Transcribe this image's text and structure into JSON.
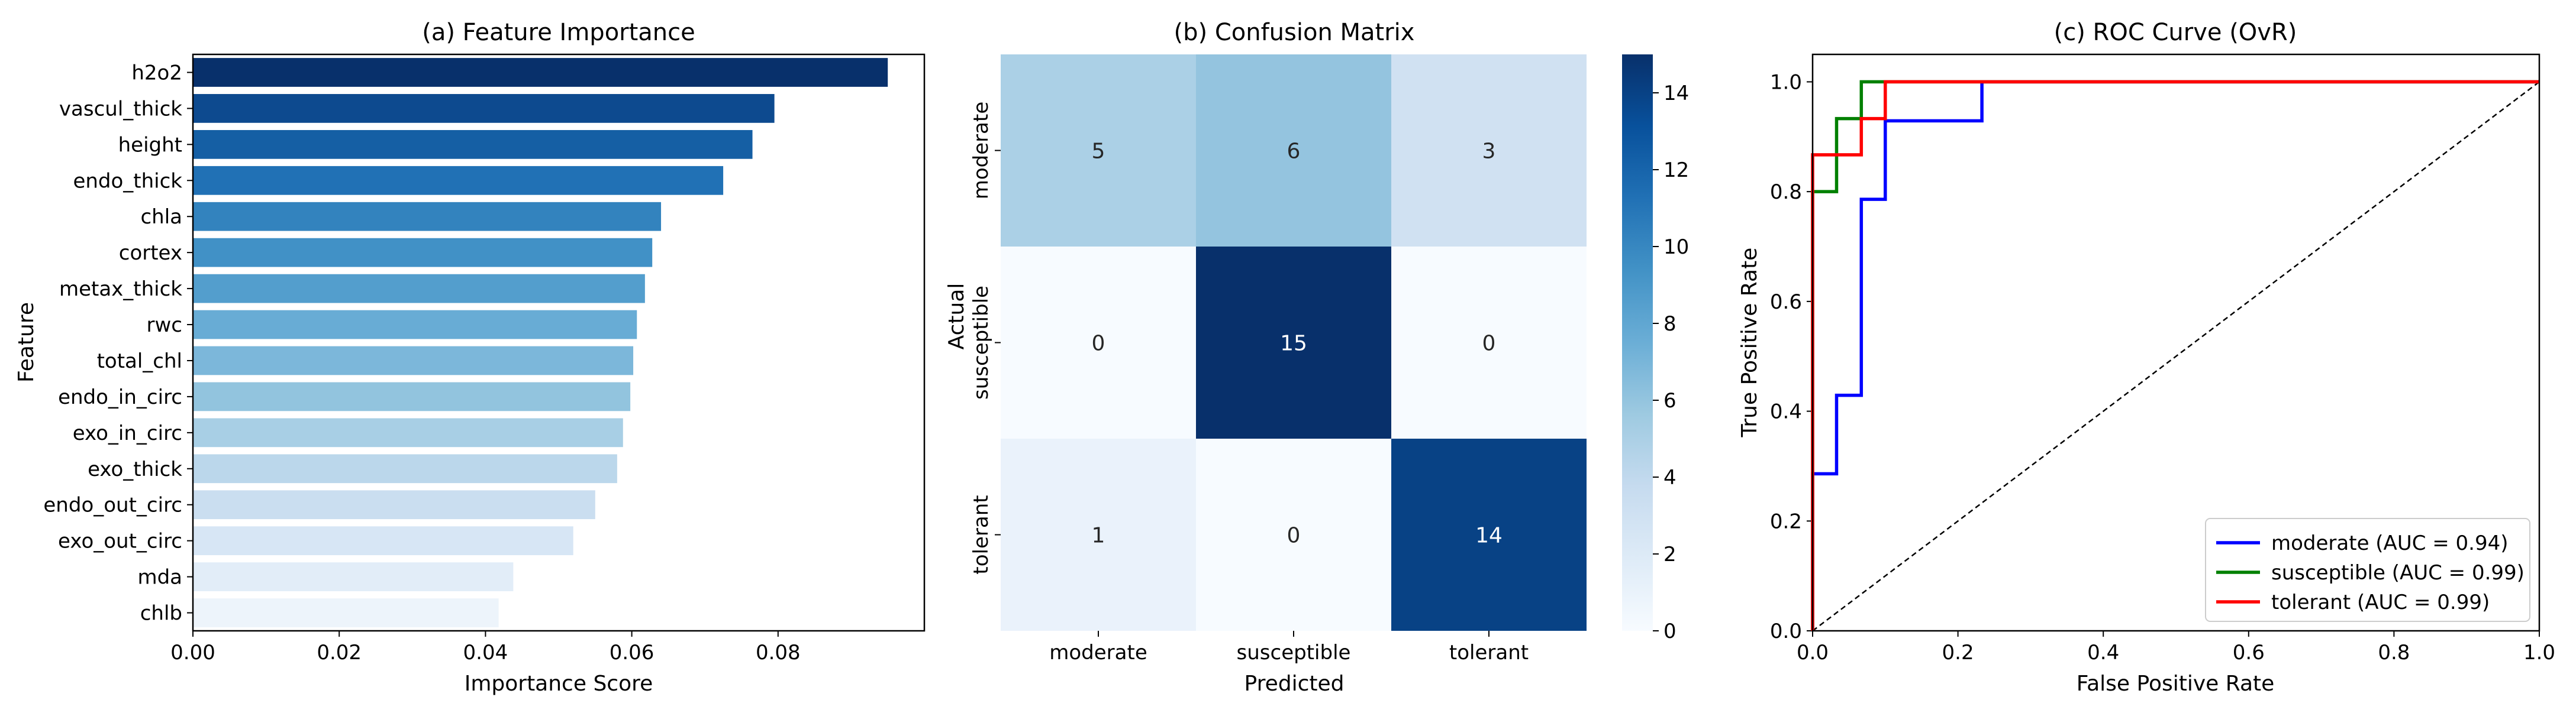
{
  "chart_data": [
    {
      "type": "bar",
      "orientation": "horizontal",
      "title": "(a) Feature Importance",
      "xlabel": "Importance Score",
      "ylabel": "Feature",
      "xlim": [
        0,
        0.1
      ],
      "xticks": [
        0.0,
        0.02,
        0.04,
        0.06,
        0.08
      ],
      "xtick_labels": [
        "0.00",
        "0.02",
        "0.04",
        "0.06",
        "0.08"
      ],
      "categories": [
        "h2o2",
        "vascul_thick",
        "height",
        "endo_thick",
        "chla",
        "cortex",
        "metax_thick",
        "rwc",
        "total_chl",
        "endo_in_circ",
        "exo_in_circ",
        "exo_thick",
        "endo_out_circ",
        "exo_out_circ",
        "mda",
        "chlb"
      ],
      "values": [
        0.095,
        0.0795,
        0.0765,
        0.0725,
        0.064,
        0.0628,
        0.0618,
        0.0607,
        0.0602,
        0.0598,
        0.0588,
        0.058,
        0.055,
        0.052,
        0.0438,
        0.0418
      ],
      "colors": [
        "#08306b",
        "#0d4a8f",
        "#155fa4",
        "#2171b5",
        "#3383be",
        "#4191c6",
        "#539ecd",
        "#68acd5",
        "#7cb7da",
        "#92c4de",
        "#a8cfe5",
        "#bbd7eb",
        "#cadef0",
        "#d7e6f5",
        "#e2edf8",
        "#edf4fb"
      ]
    },
    {
      "type": "heatmap",
      "title": "(b) Confusion Matrix",
      "xlabel": "Predicted",
      "ylabel": "Actual",
      "x_categories": [
        "moderate",
        "susceptible",
        "tolerant"
      ],
      "y_categories": [
        "moderate",
        "susceptible",
        "tolerant"
      ],
      "values": [
        [
          5,
          6,
          3
        ],
        [
          0,
          15,
          0
        ],
        [
          1,
          0,
          14
        ]
      ],
      "colorbar": {
        "range": [
          0,
          15
        ],
        "ticks": [
          0,
          2,
          4,
          6,
          8,
          10,
          12,
          14
        ],
        "tick_labels": [
          "0",
          "2",
          "4",
          "6",
          "8",
          "10",
          "12",
          "14"
        ],
        "colormap": "Blues"
      }
    },
    {
      "type": "line",
      "title": "(c) ROC Curve (OvR)",
      "xlabel": "False Positive Rate",
      "ylabel": "True Positive Rate",
      "xlim": [
        0,
        1
      ],
      "ylim": [
        0,
        1.05
      ],
      "xticks": [
        0,
        0.2,
        0.4,
        0.6,
        0.8,
        1.0
      ],
      "xtick_labels": [
        "0.0",
        "0.2",
        "0.4",
        "0.6",
        "0.8",
        "1.0"
      ],
      "yticks": [
        0,
        0.2,
        0.4,
        0.6,
        0.8,
        1.0
      ],
      "ytick_labels": [
        "0.0",
        "0.2",
        "0.4",
        "0.6",
        "0.8",
        "1.0"
      ],
      "legend_position": "bottom-right",
      "series": [
        {
          "name": "moderate (AUC = 0.94)",
          "color": "#0000ff",
          "points": [
            [
              0,
              0
            ],
            [
              0,
              0.286
            ],
            [
              0.033,
              0.286
            ],
            [
              0.033,
              0.429
            ],
            [
              0.067,
              0.429
            ],
            [
              0.067,
              0.786
            ],
            [
              0.1,
              0.786
            ],
            [
              0.1,
              0.929
            ],
            [
              0.233,
              0.929
            ],
            [
              0.233,
              1.0
            ],
            [
              1.0,
              1.0
            ]
          ]
        },
        {
          "name": "susceptible (AUC = 0.99)",
          "color": "#008000",
          "points": [
            [
              0,
              0
            ],
            [
              0,
              0.8
            ],
            [
              0.033,
              0.8
            ],
            [
              0.033,
              0.933
            ],
            [
              0.067,
              0.933
            ],
            [
              0.067,
              1.0
            ],
            [
              1.0,
              1.0
            ]
          ]
        },
        {
          "name": "tolerant (AUC = 0.99)",
          "color": "#ff0000",
          "points": [
            [
              0,
              0
            ],
            [
              0,
              0.867
            ],
            [
              0.067,
              0.867
            ],
            [
              0.067,
              0.933
            ],
            [
              0.1,
              0.933
            ],
            [
              0.1,
              1.0
            ],
            [
              1.0,
              1.0
            ]
          ]
        }
      ],
      "reference_line": {
        "from": [
          0,
          0
        ],
        "to": [
          1,
          1
        ],
        "style": "dashed",
        "color": "#000000"
      }
    }
  ]
}
